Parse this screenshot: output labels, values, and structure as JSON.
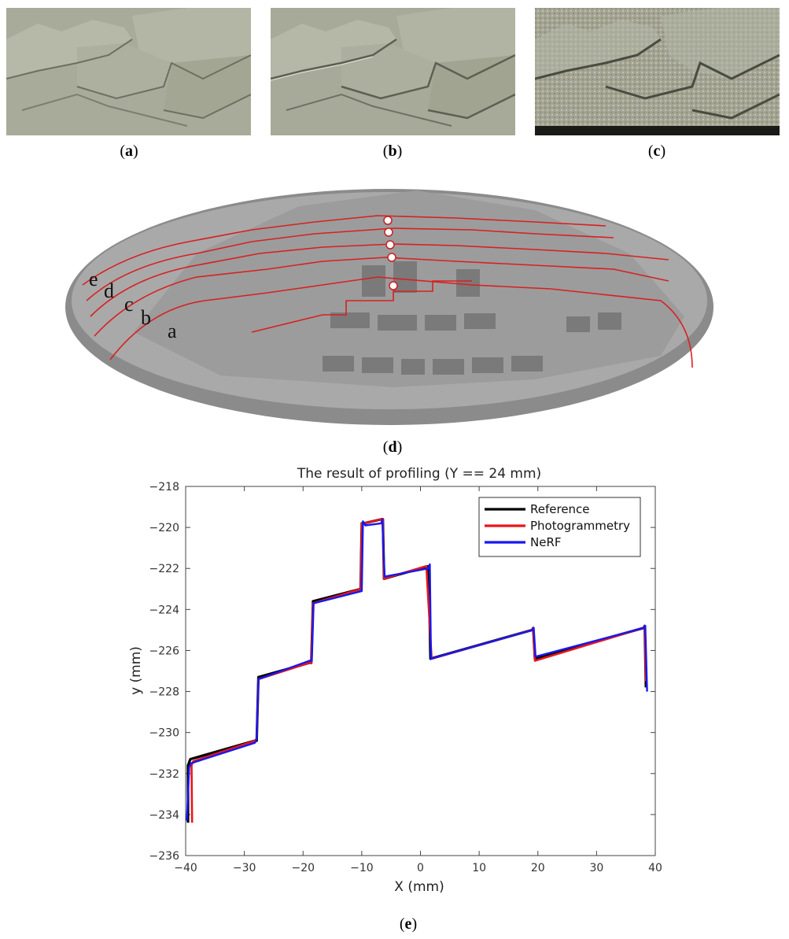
{
  "figure": {
    "captions": {
      "a": "a",
      "b": "b",
      "c": "c",
      "d": "d",
      "e": "e"
    },
    "panel_d": {
      "profile_letters": [
        "a",
        "b",
        "c",
        "d",
        "e"
      ]
    }
  },
  "chart_data": {
    "type": "line",
    "title": "The result of profiling (Y == 24 mm)",
    "xlabel": "X (mm)",
    "ylabel": "y (mm)",
    "xlim": [
      -40,
      40
    ],
    "ylim": [
      -236,
      -218
    ],
    "xticks": [
      -40,
      -30,
      -20,
      -10,
      0,
      10,
      20,
      30,
      40
    ],
    "yticks": [
      -218,
      -220,
      -222,
      -224,
      -226,
      -228,
      -230,
      -232,
      -234,
      -236
    ],
    "grid": false,
    "legend_position": "top-right",
    "series": [
      {
        "name": "Reference",
        "color": "#000000",
        "x": [
          -39.6,
          -39.6,
          -39.2,
          -28.2,
          -27.9,
          -27.6,
          -18.9,
          -18.6,
          -18.3,
          -10.2,
          -10.0,
          -9.7,
          -6.6,
          -6.4,
          -6.2,
          1.2,
          1.4,
          1.7,
          19.0,
          19.2,
          19.5,
          38.0,
          38.2,
          38.4
        ],
        "y": [
          -234.4,
          -231.6,
          -231.3,
          -230.4,
          -230.4,
          -227.3,
          -226.6,
          -226.6,
          -223.6,
          -223.0,
          -219.8,
          -219.8,
          -219.6,
          -219.6,
          -222.5,
          -221.9,
          -221.9,
          -226.4,
          -225.0,
          -224.9,
          -226.4,
          -224.9,
          -224.8,
          -227.8
        ]
      },
      {
        "name": "Photogrammetry",
        "color": "#e8161b",
        "x": [
          -38.9,
          -39.0,
          -38.7,
          -28.2,
          -27.9,
          -27.6,
          -18.9,
          -18.6,
          -18.3,
          -10.2,
          -10.0,
          -9.7,
          -6.6,
          -6.4,
          -6.2,
          0.8,
          1.0,
          1.9,
          19.0,
          19.2,
          19.5,
          38.0,
          38.2,
          38.4
        ],
        "y": [
          -234.4,
          -231.6,
          -231.4,
          -230.4,
          -230.3,
          -227.4,
          -226.6,
          -226.6,
          -223.7,
          -223.0,
          -219.8,
          -219.8,
          -219.6,
          -219.6,
          -222.5,
          -221.9,
          -221.9,
          -226.4,
          -225.0,
          -224.9,
          -226.5,
          -224.9,
          -224.8,
          -227.5
        ]
      },
      {
        "name": "NeRF",
        "color": "#1818f0",
        "x": [
          -39.8,
          -39.4,
          -39.1,
          -28.2,
          -27.9,
          -27.6,
          -18.9,
          -18.5,
          -18.2,
          -10.0,
          -9.8,
          -9.4,
          -6.7,
          -6.5,
          -6.1,
          1.3,
          1.6,
          1.8,
          19.1,
          19.3,
          19.6,
          38.0,
          38.3,
          38.6
        ],
        "y": [
          -234.3,
          -231.7,
          -231.5,
          -230.5,
          -230.3,
          -227.4,
          -226.5,
          -226.5,
          -223.7,
          -223.1,
          -219.7,
          -219.9,
          -219.8,
          -219.6,
          -222.4,
          -222.0,
          -221.8,
          -226.4,
          -225.0,
          -224.9,
          -226.3,
          -224.9,
          -224.8,
          -228.0
        ]
      }
    ]
  }
}
